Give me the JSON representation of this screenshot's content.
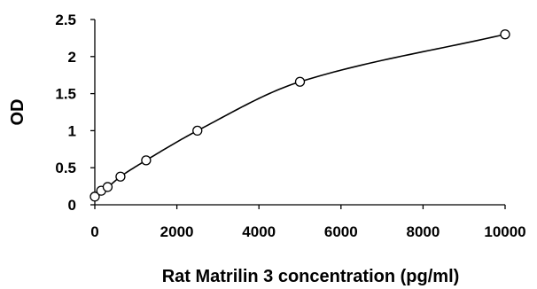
{
  "chart_data": {
    "type": "scatter",
    "title": "",
    "xlabel": "Rat Matrilin 3 concentration (pg/ml)",
    "ylabel": "OD",
    "xlim": [
      0,
      10000
    ],
    "ylim": [
      0,
      2.5
    ],
    "xticks": [
      0,
      2000,
      4000,
      6000,
      8000,
      10000
    ],
    "yticks": [
      0,
      0.5,
      1,
      1.5,
      2,
      2.5
    ],
    "xtick_labels": [
      "0",
      "2000",
      "4000",
      "6000",
      "8000",
      "10000"
    ],
    "ytick_labels": [
      "0",
      "0.5",
      "1",
      "1.5",
      "2",
      "2.5"
    ],
    "grid": false,
    "legend": false,
    "fit_line": "smooth curve",
    "series": [
      {
        "x": [
          0,
          156,
          312,
          625,
          1250,
          2500,
          5000,
          10000
        ],
        "y": [
          0.11,
          0.19,
          0.24,
          0.38,
          0.6,
          1.0,
          1.66,
          2.3
        ]
      }
    ]
  }
}
